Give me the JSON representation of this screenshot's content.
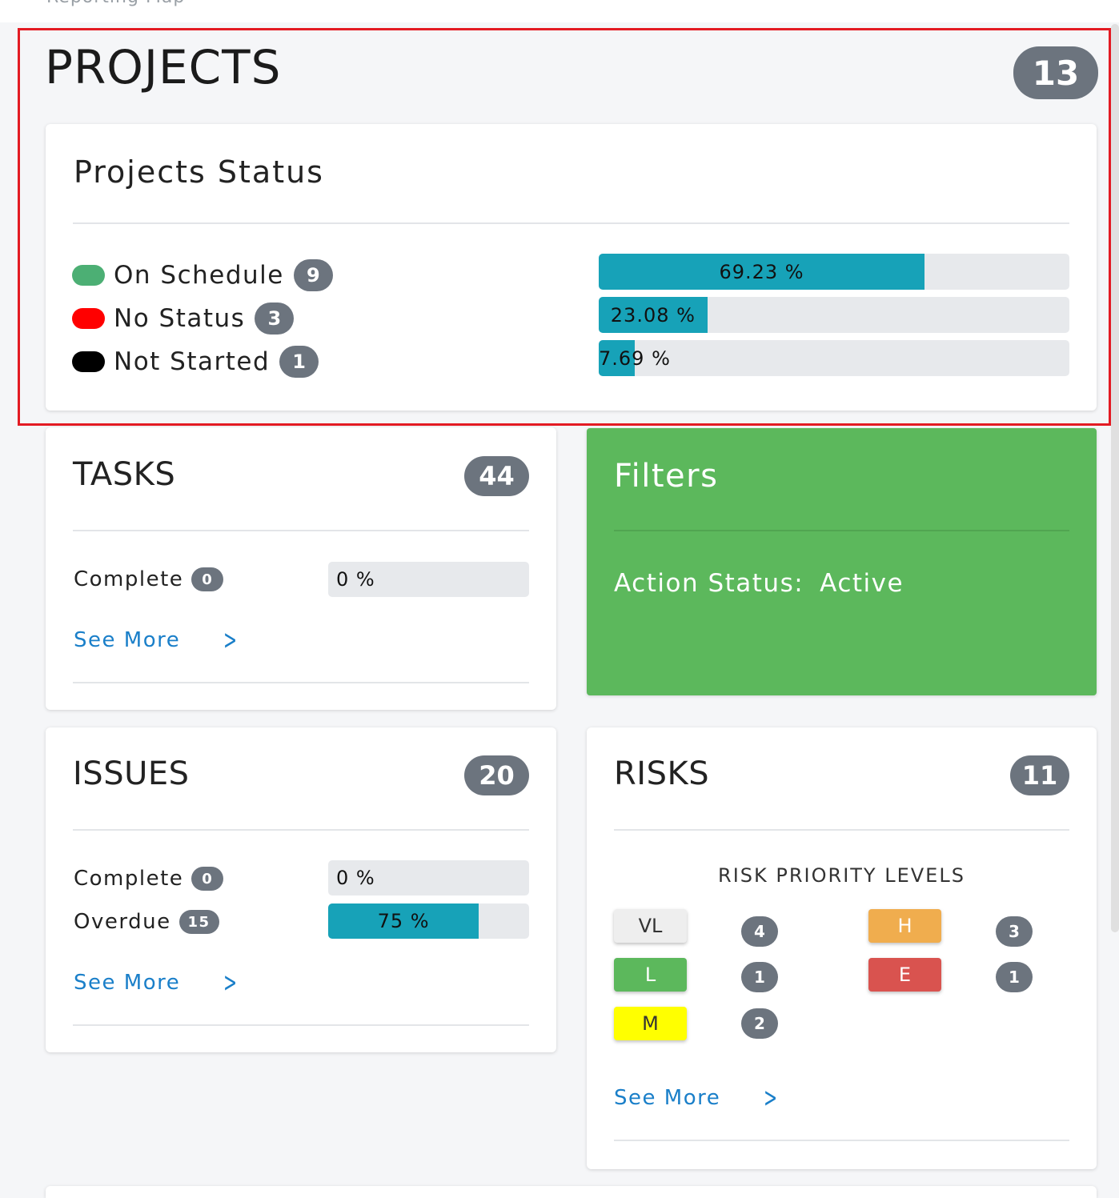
{
  "colors": {
    "accent": "#17a2b8",
    "badge": "#6c747e",
    "link": "#1a7fc9",
    "filters_bg": "#5cb85c",
    "highlight_border": "#e31b23",
    "on_schedule": "#4caf74",
    "no_status": "#ff0000",
    "not_started": "#000000",
    "risk_vl": "#eeeeee",
    "risk_l": "#5cb85c",
    "risk_m": "#ffff00",
    "risk_h": "#f0ad4e",
    "risk_e": "#d9534f"
  },
  "projects": {
    "title": "PROJECTS",
    "count": "13",
    "status_card": {
      "title": "Projects Status",
      "rows": [
        {
          "label": "On Schedule",
          "count": "9",
          "percent_label": "69.23 %",
          "percent": 69.23
        },
        {
          "label": "No Status",
          "count": "3",
          "percent_label": "23.08 %",
          "percent": 23.08
        },
        {
          "label": "Not Started",
          "count": "1",
          "percent_label": "7.69 %",
          "percent": 7.69
        }
      ]
    }
  },
  "tasks": {
    "title": "TASKS",
    "count": "44",
    "complete_label": "Complete",
    "complete_count": "0",
    "complete_percent_label": "0 %",
    "complete_percent": 0,
    "see_more": "See More"
  },
  "filters": {
    "title": "Filters",
    "action_status_label": "Action Status:",
    "action_status_value": "Active"
  },
  "issues": {
    "title": "ISSUES",
    "count": "20",
    "complete_label": "Complete",
    "complete_count": "0",
    "complete_percent_label": "0 %",
    "complete_percent": 0,
    "overdue_label": "Overdue",
    "overdue_count": "15",
    "overdue_percent_label": "75 %",
    "overdue_percent": 75,
    "see_more": "See More"
  },
  "risks": {
    "title": "RISKS",
    "count": "11",
    "levels_heading": "RISK PRIORITY LEVELS",
    "levels": [
      {
        "code": "VL",
        "count": "4"
      },
      {
        "code": "L",
        "count": "1"
      },
      {
        "code": "M",
        "count": "2"
      },
      {
        "code": "H",
        "count": "3"
      },
      {
        "code": "E",
        "count": "1"
      }
    ],
    "see_more": "See More"
  }
}
